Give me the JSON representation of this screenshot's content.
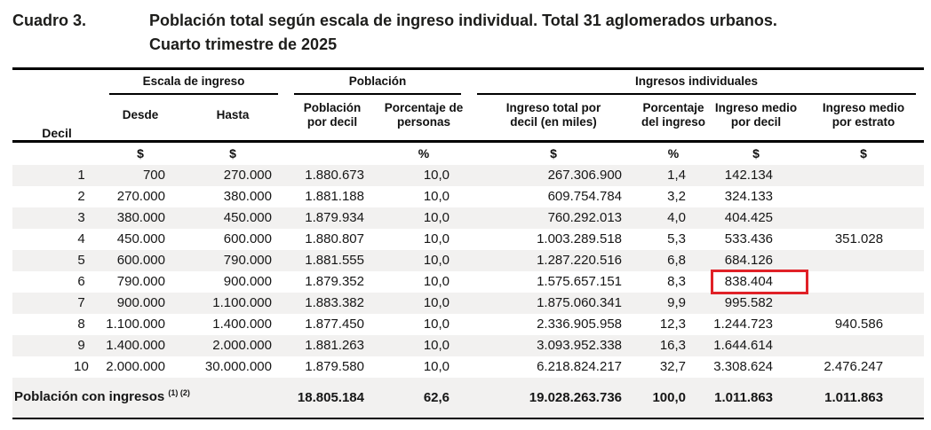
{
  "title": {
    "label": "Cuadro 3.",
    "line1": "Población total según escala de ingreso individual. Total 31 aglomerados urbanos.",
    "line2": "Cuarto trimestre de 2025"
  },
  "colors": {
    "highlight_red": "#e02127",
    "row_stripe": "#f2f1f0"
  },
  "table": {
    "groups": [
      "Escala de ingreso",
      "Población",
      "Ingresos individuales"
    ],
    "columns": [
      "Decil",
      "Desde",
      "Hasta",
      "Población por decil",
      "Porcentaje de personas",
      "Ingreso total por decil (en miles)",
      "Porcentaje del ingreso",
      "Ingreso medio por decil",
      "Ingreso medio por estrato"
    ],
    "units": [
      "",
      "$",
      "$",
      "",
      "%",
      "$",
      "%",
      "$",
      "$"
    ],
    "rows": [
      {
        "decil": "1",
        "desde": "700",
        "hasta": "270.000",
        "poblacion_por_decil": "1.880.673",
        "porcentaje_personas": "10,0",
        "ingreso_total": "267.306.900",
        "porcentaje_ingreso": "1,4",
        "ingreso_medio_decil": "142.134",
        "ingreso_medio_estrato": ""
      },
      {
        "decil": "2",
        "desde": "270.000",
        "hasta": "380.000",
        "poblacion_por_decil": "1.881.188",
        "porcentaje_personas": "10,0",
        "ingreso_total": "609.754.784",
        "porcentaje_ingreso": "3,2",
        "ingreso_medio_decil": "324.133",
        "ingreso_medio_estrato": ""
      },
      {
        "decil": "3",
        "desde": "380.000",
        "hasta": "450.000",
        "poblacion_por_decil": "1.879.934",
        "porcentaje_personas": "10,0",
        "ingreso_total": "760.292.013",
        "porcentaje_ingreso": "4,0",
        "ingreso_medio_decil": "404.425",
        "ingreso_medio_estrato": ""
      },
      {
        "decil": "4",
        "desde": "450.000",
        "hasta": "600.000",
        "poblacion_por_decil": "1.880.807",
        "porcentaje_personas": "10,0",
        "ingreso_total": "1.003.289.518",
        "porcentaje_ingreso": "5,3",
        "ingreso_medio_decil": "533.436",
        "ingreso_medio_estrato": "351.028"
      },
      {
        "decil": "5",
        "desde": "600.000",
        "hasta": "790.000",
        "poblacion_por_decil": "1.881.555",
        "porcentaje_personas": "10,0",
        "ingreso_total": "1.287.220.516",
        "porcentaje_ingreso": "6,8",
        "ingreso_medio_decil": "684.126",
        "ingreso_medio_estrato": ""
      },
      {
        "decil": "6",
        "desde": "790.000",
        "hasta": "900.000",
        "poblacion_por_decil": "1.879.352",
        "porcentaje_personas": "10,0",
        "ingreso_total": "1.575.657.151",
        "porcentaje_ingreso": "8,3",
        "ingreso_medio_decil": "838.404",
        "ingreso_medio_estrato": ""
      },
      {
        "decil": "7",
        "desde": "900.000",
        "hasta": "1.100.000",
        "poblacion_por_decil": "1.883.382",
        "porcentaje_personas": "10,0",
        "ingreso_total": "1.875.060.341",
        "porcentaje_ingreso": "9,9",
        "ingreso_medio_decil": "995.582",
        "ingreso_medio_estrato": ""
      },
      {
        "decil": "8",
        "desde": "1.100.000",
        "hasta": "1.400.000",
        "poblacion_por_decil": "1.877.450",
        "porcentaje_personas": "10,0",
        "ingreso_total": "2.336.905.958",
        "porcentaje_ingreso": "12,3",
        "ingreso_medio_decil": "1.244.723",
        "ingreso_medio_estrato": "940.586"
      },
      {
        "decil": "9",
        "desde": "1.400.000",
        "hasta": "2.000.000",
        "poblacion_por_decil": "1.881.263",
        "porcentaje_personas": "10,0",
        "ingreso_total": "3.093.952.338",
        "porcentaje_ingreso": "16,3",
        "ingreso_medio_decil": "1.644.614",
        "ingreso_medio_estrato": ""
      },
      {
        "decil": "10",
        "desde": "2.000.000",
        "hasta": "30.000.000",
        "poblacion_por_decil": "1.879.580",
        "porcentaje_personas": "10,0",
        "ingreso_total": "6.218.824.217",
        "porcentaje_ingreso": "32,7",
        "ingreso_medio_decil": "3.308.624",
        "ingreso_medio_estrato": "2.476.247"
      }
    ],
    "highlight": {
      "row_decil": "6",
      "field": "ingreso_medio_decil"
    },
    "total_row": {
      "label": "Población con ingresos",
      "superscript": "(1) (2)",
      "poblacion_por_decil": "18.805.184",
      "porcentaje_personas": "62,6",
      "ingreso_total": "19.028.263.736",
      "porcentaje_ingreso": "100,0",
      "ingreso_medio_decil": "1.011.863",
      "ingreso_medio_estrato": "1.011.863"
    }
  }
}
